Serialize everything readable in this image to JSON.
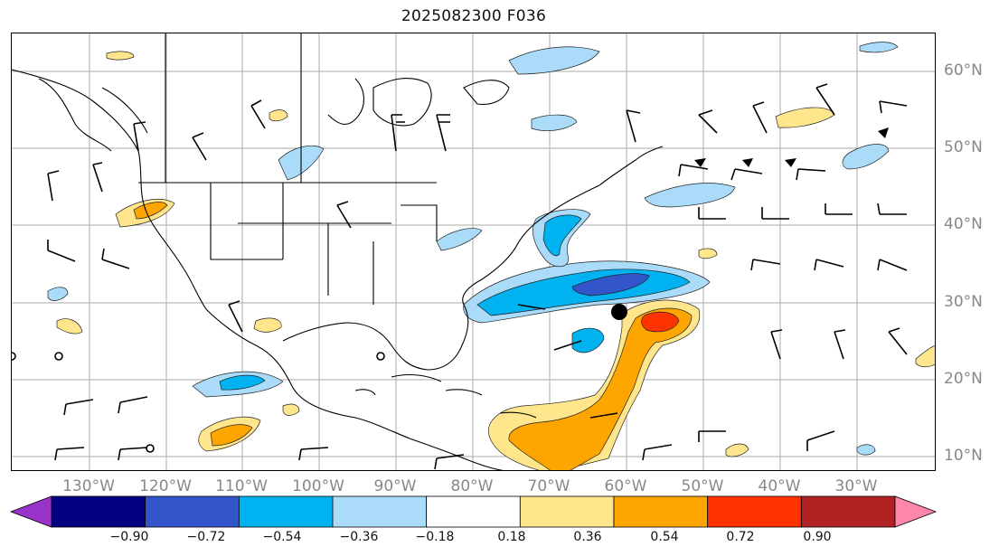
{
  "title": "2025082300 F036",
  "lat_labels": [
    "60°N",
    "50°N",
    "40°N",
    "30°N",
    "20°N",
    "10°N"
  ],
  "lon_labels": [
    "130°W",
    "120°W",
    "110°W",
    "100°W",
    "90°W",
    "80°W",
    "70°W",
    "60°W",
    "50°W",
    "40°W",
    "30°W"
  ],
  "colorbar": {
    "ticks": [
      "−0.90",
      "−0.72",
      "−0.54",
      "−0.36",
      "−0.18",
      "0.18",
      "0.36",
      "0.54",
      "0.72",
      "0.90"
    ],
    "colors": [
      "#9933cc",
      "#000080",
      "#3355cc",
      "#00b3f0",
      "#aadcfa",
      "#ffffff",
      "#ffe68c",
      "#ffa500",
      "#ff3300",
      "#b22222",
      "#ff88aa"
    ]
  },
  "colors": {
    "grid": "#aaaaaa",
    "coast": "#000000",
    "positive_light": "#ffe68c",
    "positive_mid": "#ffa500",
    "positive_strong": "#ff3300",
    "negative_light": "#aadcfa",
    "negative_mid": "#00b3f0",
    "negative_strong": "#3355cc"
  }
}
